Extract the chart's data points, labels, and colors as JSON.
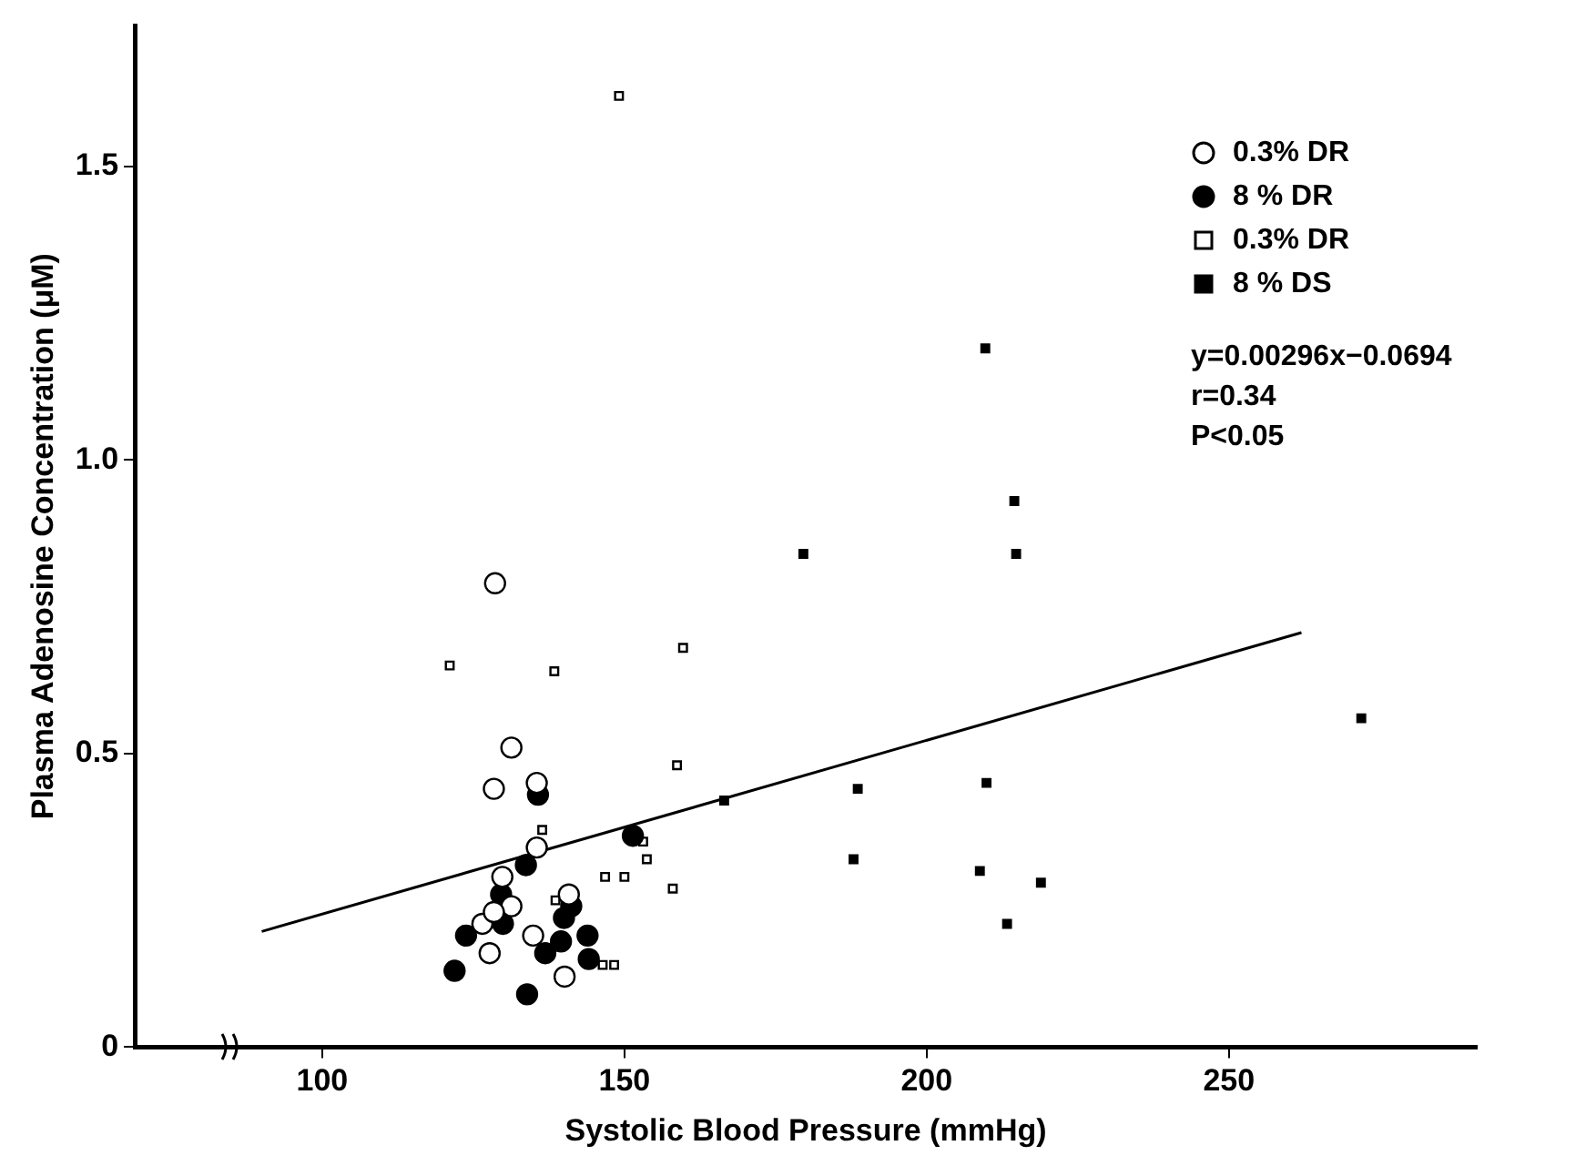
{
  "chart_data": {
    "type": "scatter",
    "xlabel": "Systolic Blood Pressure (mmHg)",
    "ylabel": "Plasma Adenosine Concentration (μM)",
    "xlim": [
      69,
      291
    ],
    "ylim": [
      0,
      1.74
    ],
    "xticks": [
      100,
      150,
      200,
      250
    ],
    "yticks": [
      0,
      0.5,
      {
        "value": 1,
        "label": "1.0"
      },
      1.5
    ],
    "grid": false,
    "legend": "top right",
    "series": [
      {
        "name": "0.3% DR",
        "color": "#ffffff",
        "marker": "circle",
        "x": [
          128.6,
          131.3,
          128.4,
          135.5,
          135.5,
          129.8,
          126.5,
          131.3,
          128.4,
          127.7,
          134.9,
          140.8,
          140.1
        ],
        "values": [
          0.79,
          0.51,
          0.44,
          0.45,
          0.34,
          0.29,
          0.21,
          0.24,
          0.23,
          0.16,
          0.19,
          0.26,
          0.12
        ]
      },
      {
        "name": "8 % DR",
        "color": "#000000",
        "marker": "circle",
        "x": [
          135.7,
          133.7,
          151.4,
          129.6,
          129.9,
          123.8,
          121.9,
          133.9,
          136.9,
          139.5,
          140,
          141.2,
          143.9,
          144.1
        ],
        "values": [
          0.43,
          0.31,
          0.36,
          0.26,
          0.21,
          0.19,
          0.13,
          0.09,
          0.16,
          0.18,
          0.22,
          0.24,
          0.19,
          0.15
        ]
      },
      {
        "name": "0.3% DR",
        "color": "#ffffff",
        "marker": "square",
        "x": [
          149.1,
          121.1,
          138.4,
          159.7,
          158.7,
          136.4,
          153.1,
          153.7,
          146.8,
          150,
          158,
          138.6,
          146.4,
          148.3
        ],
        "values": [
          1.62,
          0.65,
          0.64,
          0.68,
          0.48,
          0.37,
          0.35,
          0.32,
          0.29,
          0.29,
          0.27,
          0.25,
          0.14,
          0.14
        ]
      },
      {
        "name": "8 % DS",
        "color": "#000000",
        "marker": "square",
        "x": [
          209.7,
          214.5,
          214.8,
          179.6,
          166.5,
          188.6,
          187.9,
          209.9,
          208.8,
          218.9,
          213.3,
          271.9
        ],
        "values": [
          1.19,
          0.93,
          0.84,
          0.84,
          0.42,
          0.44,
          0.32,
          0.45,
          0.3,
          0.28,
          0.21,
          0.56
        ]
      },
      {
        "type": "line",
        "color": "#000000",
        "marker": "none",
        "x": [
          90,
          262
        ],
        "values": [
          0.197,
          0.706
        ]
      }
    ],
    "annotations": [
      "y=0.00296x−0.0694",
      "r=0.34",
      "P<0.05"
    ]
  }
}
